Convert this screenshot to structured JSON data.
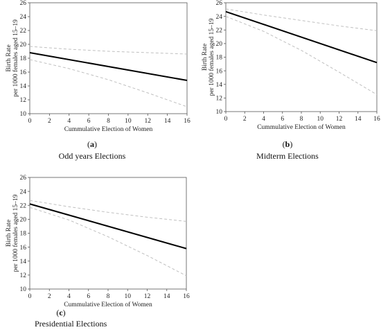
{
  "colors": {
    "fit": "#000000",
    "ci": "#bfbfbf",
    "frame": "#555555"
  },
  "chart_data": [
    {
      "type": "line",
      "panel": "(a)",
      "panel_letter": "a",
      "caption": "Odd years Elections",
      "xlabel": "Cummulative Election of Women",
      "ylabel": [
        "Birth Rate",
        "per 1000 females aged 15–19"
      ],
      "xlim": [
        0,
        16
      ],
      "ylim": [
        10,
        26
      ],
      "xticks": [
        0,
        2,
        4,
        6,
        8,
        10,
        12,
        14,
        16
      ],
      "yticks": [
        10,
        12,
        14,
        16,
        18,
        20,
        22,
        24,
        26
      ],
      "grid": false,
      "series": [
        {
          "role": "fit",
          "x": [
            0,
            16
          ],
          "y": [
            18.8,
            14.8
          ]
        },
        {
          "role": "ci_upper",
          "x": [
            0,
            4,
            8,
            12,
            16
          ],
          "y": [
            19.7,
            19.3,
            19.0,
            18.8,
            18.6
          ]
        },
        {
          "role": "ci_lower",
          "x": [
            0,
            4,
            8,
            12,
            16
          ],
          "y": [
            17.8,
            16.5,
            14.9,
            13.0,
            11.0
          ]
        }
      ]
    },
    {
      "type": "line",
      "panel": "(b)",
      "panel_letter": "b",
      "caption": "Midterm Elections",
      "xlabel": "Cummulative Election of Women",
      "ylabel": [
        "Birth Rate",
        "per 1000 females aged 15–19"
      ],
      "xlim": [
        0,
        16
      ],
      "ylim": [
        10,
        26
      ],
      "xticks": [
        0,
        2,
        4,
        6,
        8,
        10,
        12,
        14,
        16
      ],
      "yticks": [
        10,
        12,
        14,
        16,
        18,
        20,
        22,
        24,
        26
      ],
      "grid": false,
      "series": [
        {
          "role": "fit",
          "x": [
            0,
            16
          ],
          "y": [
            24.7,
            17.2
          ]
        },
        {
          "role": "ci_upper",
          "x": [
            0,
            4,
            8,
            12,
            16
          ],
          "y": [
            25.1,
            24.2,
            23.4,
            22.6,
            21.9
          ]
        },
        {
          "role": "ci_lower",
          "x": [
            0,
            4,
            8,
            12,
            16
          ],
          "y": [
            24.0,
            21.8,
            19.0,
            15.8,
            12.5
          ]
        }
      ]
    },
    {
      "type": "line",
      "panel": "(c)",
      "panel_letter": "c",
      "caption": "Presidential Elections",
      "xlabel": "Cummulative Election of Women",
      "ylabel": [
        "Birth Rate",
        "per 1000 females aged 15–19"
      ],
      "xlim": [
        0,
        16
      ],
      "ylim": [
        10,
        26
      ],
      "xticks": [
        0,
        2,
        4,
        6,
        8,
        10,
        12,
        14,
        16
      ],
      "yticks": [
        10,
        12,
        14,
        16,
        18,
        20,
        22,
        24,
        26
      ],
      "grid": false,
      "series": [
        {
          "role": "fit",
          "x": [
            0,
            16
          ],
          "y": [
            22.2,
            15.8
          ]
        },
        {
          "role": "ci_upper",
          "x": [
            0,
            4,
            8,
            12,
            16
          ],
          "y": [
            22.7,
            21.8,
            21.0,
            20.3,
            19.7
          ]
        },
        {
          "role": "ci_lower",
          "x": [
            0,
            4,
            8,
            12,
            16
          ],
          "y": [
            21.7,
            19.9,
            17.5,
            14.8,
            11.9
          ]
        }
      ]
    }
  ]
}
